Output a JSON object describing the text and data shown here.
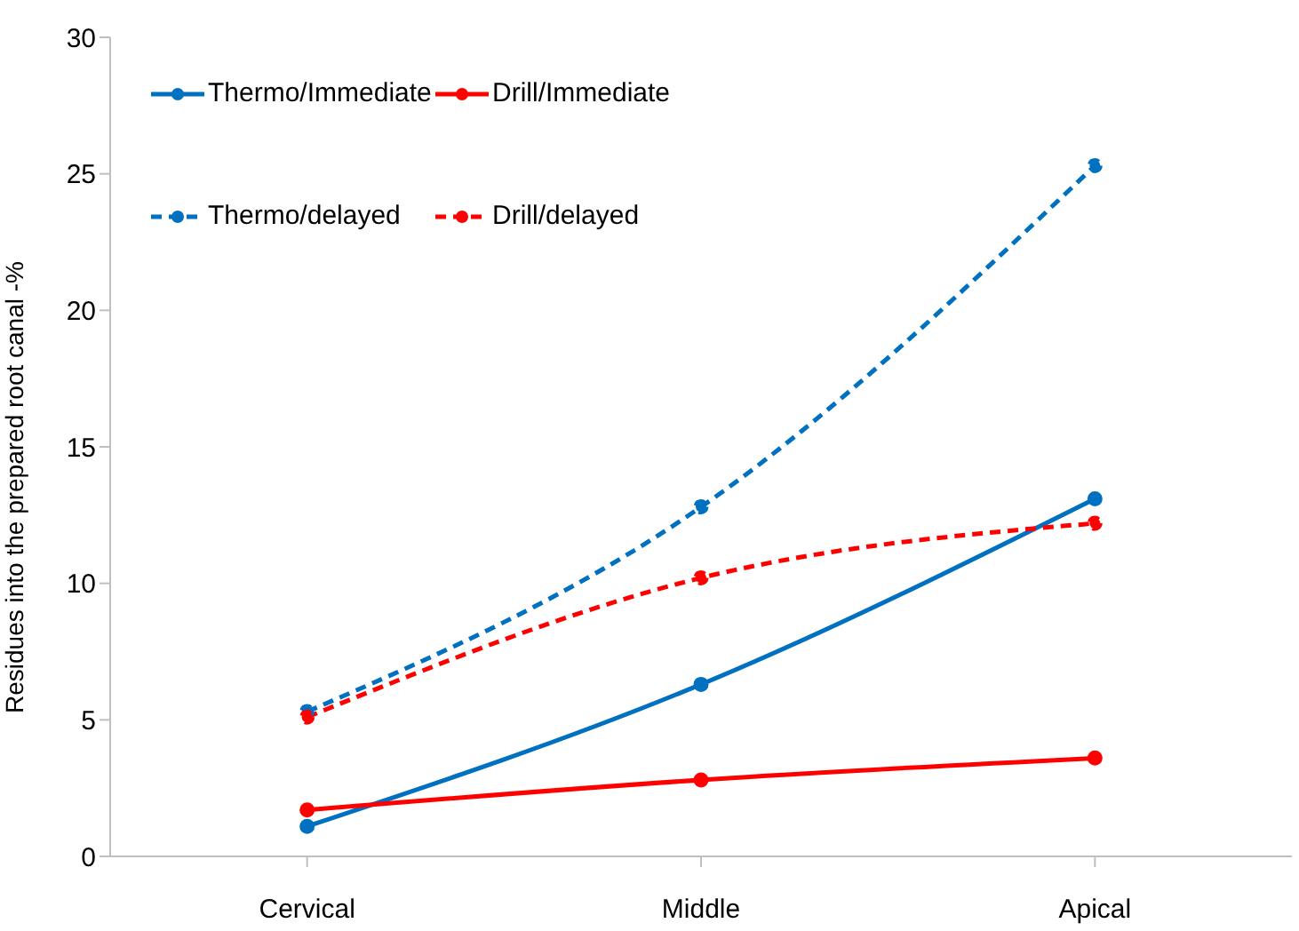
{
  "chart_data": {
    "type": "line",
    "ylabel": "Residues into the prepared root canal -%",
    "categories": [
      "Cervical",
      "Middle",
      "Apical"
    ],
    "series": [
      {
        "name": "Thermo/Immediate",
        "color": "#0070c0",
        "values": [
          1.1,
          6.3,
          13.1
        ],
        "line_style": "solid"
      },
      {
        "name": "Drill/Immediate",
        "color": "#ff0000",
        "values": [
          1.7,
          2.8,
          3.6
        ],
        "line_style": "solid"
      },
      {
        "name": "Thermo/delayed",
        "color": "#0070c0",
        "values": [
          5.3,
          12.8,
          25.3
        ],
        "line_style": "dashed"
      },
      {
        "name": "Drill/delayed",
        "color": "#ff0000",
        "values": [
          5.1,
          10.2,
          12.2
        ],
        "line_style": "dashed"
      }
    ],
    "ylim": [
      0,
      30
    ],
    "yticks": [
      0,
      5,
      10,
      15,
      20,
      25,
      30
    ],
    "legend": "top left",
    "marker": "circle"
  }
}
